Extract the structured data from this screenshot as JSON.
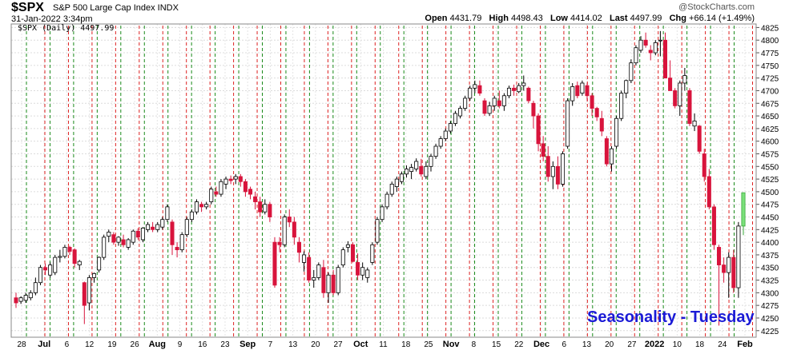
{
  "header": {
    "symbol": "$SPX",
    "description": "S&P 500 Large Cap Index INDX",
    "credit": "@StockCharts.com",
    "timestamp": "31-Jan-2022 3:34pm",
    "open_label": "Open",
    "open_value": "4431.79",
    "high_label": "High",
    "high_value": "4498.43",
    "low_label": "Low",
    "low_value": "4414.02",
    "last_label": "Last",
    "last_value": "4497.99",
    "chg_label": "Chg",
    "chg_value": "+66.14 (+1.49%)",
    "legend": "$SPX (Daily) 4497.99",
    "overlay_text": "Seasonality - Tuesday"
  },
  "chart_data": {
    "type": "candlestick",
    "ylim": [
      4212,
      4832
    ],
    "y_ticks": [
      4225,
      4250,
      4275,
      4300,
      4325,
      4350,
      4375,
      4400,
      4425,
      4450,
      4475,
      4500,
      4525,
      4550,
      4575,
      4600,
      4625,
      4650,
      4675,
      4700,
      4725,
      4750,
      4775,
      4800,
      4825
    ],
    "x_tick_labels": [
      "28",
      "Jul",
      "6",
      "12",
      "19",
      "26",
      "Aug",
      "9",
      "16",
      "23",
      "Sep",
      "7",
      "13",
      "20",
      "27",
      "Oct",
      "11",
      "18",
      "25",
      "Nov",
      "8",
      "15",
      "22",
      "Dec",
      "6",
      "13",
      "20",
      "27",
      "2022",
      "10",
      "18",
      "24",
      "Feb"
    ],
    "x_tick_bold": [
      "Jul",
      "Aug",
      "Sep",
      "Oct",
      "Nov",
      "Dec",
      "2022",
      "Feb"
    ],
    "up_color": "#000000",
    "down_color": "#d8143c",
    "last_up_color": "#7be07b",
    "grid": true,
    "vertical_markers": {
      "green": "Tuesday",
      "red": "Wednesday",
      "green_color": "#1a8a1a",
      "red_color": "#dd2222"
    },
    "ohlc": [
      [
        4290,
        4300,
        4270,
        4280
      ],
      [
        4283,
        4293,
        4278,
        4290
      ],
      [
        4285,
        4300,
        4280,
        4295
      ],
      [
        4290,
        4305,
        4285,
        4300
      ],
      [
        4300,
        4330,
        4295,
        4320
      ],
      [
        4320,
        4355,
        4315,
        4350
      ],
      [
        4350,
        4358,
        4335,
        4345
      ],
      [
        4335,
        4360,
        4330,
        4355
      ],
      [
        4340,
        4375,
        4335,
        4370
      ],
      [
        4370,
        4385,
        4360,
        4372
      ],
      [
        4372,
        4395,
        4368,
        4390
      ],
      [
        4390,
        4393,
        4375,
        4382
      ],
      [
        4385,
        4388,
        4350,
        4358
      ],
      [
        4355,
        4365,
        4345,
        4362
      ],
      [
        4320,
        4322,
        4238,
        4275
      ],
      [
        4280,
        4335,
        4265,
        4330
      ],
      [
        4330,
        4340,
        4320,
        4338
      ],
      [
        4345,
        4372,
        4340,
        4370
      ],
      [
        4370,
        4415,
        4365,
        4410
      ],
      [
        4412,
        4425,
        4400,
        4420
      ],
      [
        4415,
        4420,
        4395,
        4400
      ],
      [
        4400,
        4412,
        4393,
        4410
      ],
      [
        4405,
        4415,
        4390,
        4395
      ],
      [
        4390,
        4408,
        4385,
        4405
      ],
      [
        4400,
        4425,
        4395,
        4422
      ],
      [
        4422,
        4428,
        4405,
        4410
      ],
      [
        4405,
        4430,
        4400,
        4428
      ],
      [
        4425,
        4440,
        4420,
        4435
      ],
      [
        4430,
        4440,
        4420,
        4425
      ],
      [
        4425,
        4440,
        4420,
        4435
      ],
      [
        4430,
        4450,
        4425,
        4445
      ],
      [
        4445,
        4475,
        4440,
        4470
      ],
      [
        4440,
        4445,
        4375,
        4395
      ],
      [
        4390,
        4400,
        4370,
        4385
      ],
      [
        4385,
        4420,
        4380,
        4415
      ],
      [
        4415,
        4450,
        4410,
        4445
      ],
      [
        4445,
        4465,
        4440,
        4460
      ],
      [
        4460,
        4485,
        4455,
        4480
      ],
      [
        4475,
        4480,
        4460,
        4470
      ],
      [
        4470,
        4480,
        4465,
        4475
      ],
      [
        4480,
        4510,
        4475,
        4505
      ],
      [
        4500,
        4510,
        4490,
        4495
      ],
      [
        4495,
        4525,
        4490,
        4520
      ],
      [
        4515,
        4530,
        4505,
        4525
      ],
      [
        4525,
        4532,
        4515,
        4522
      ],
      [
        4525,
        4535,
        4515,
        4530
      ],
      [
        4530,
        4535,
        4510,
        4520
      ],
      [
        4520,
        4525,
        4490,
        4500
      ],
      [
        4505,
        4510,
        4485,
        4495
      ],
      [
        4490,
        4500,
        4465,
        4480
      ],
      [
        4480,
        4490,
        4450,
        4460
      ],
      [
        4460,
        4485,
        4455,
        4475
      ],
      [
        4475,
        4480,
        4440,
        4450
      ],
      [
        4400,
        4410,
        4310,
        4315
      ],
      [
        4400,
        4410,
        4380,
        4395
      ],
      [
        4395,
        4455,
        4390,
        4450
      ],
      [
        4450,
        4465,
        4430,
        4440
      ],
      [
        4440,
        4450,
        4395,
        4410
      ],
      [
        4400,
        4410,
        4360,
        4380
      ],
      [
        4360,
        4382,
        4342,
        4375
      ],
      [
        4370,
        4380,
        4320,
        4325
      ],
      [
        4325,
        4345,
        4310,
        4330
      ],
      [
        4330,
        4360,
        4325,
        4355
      ],
      [
        4350,
        4365,
        4290,
        4300
      ],
      [
        4300,
        4340,
        4280,
        4335
      ],
      [
        4335,
        4345,
        4295,
        4300
      ],
      [
        4300,
        4355,
        4295,
        4350
      ],
      [
        4355,
        4390,
        4350,
        4385
      ],
      [
        4390,
        4402,
        4380,
        4395
      ],
      [
        4395,
        4400,
        4360,
        4362
      ],
      [
        4360,
        4378,
        4325,
        4335
      ],
      [
        4335,
        4360,
        4325,
        4350
      ],
      [
        4330,
        4350,
        4320,
        4345
      ],
      [
        4360,
        4400,
        4355,
        4395
      ],
      [
        4400,
        4450,
        4395,
        4445
      ],
      [
        4445,
        4475,
        4440,
        4470
      ],
      [
        4470,
        4500,
        4465,
        4495
      ],
      [
        4495,
        4520,
        4490,
        4515
      ],
      [
        4510,
        4530,
        4500,
        4525
      ],
      [
        4520,
        4540,
        4515,
        4535
      ],
      [
        4535,
        4552,
        4528,
        4545
      ],
      [
        4540,
        4555,
        4525,
        4548
      ],
      [
        4545,
        4566,
        4540,
        4560
      ],
      [
        4550,
        4565,
        4530,
        4535
      ],
      [
        4530,
        4560,
        4525,
        4550
      ],
      [
        4550,
        4575,
        4540,
        4570
      ],
      [
        4570,
        4595,
        4565,
        4590
      ],
      [
        4590,
        4610,
        4585,
        4605
      ],
      [
        4605,
        4625,
        4600,
        4620
      ],
      [
        4620,
        4640,
        4615,
        4635
      ],
      [
        4635,
        4660,
        4630,
        4655
      ],
      [
        4650,
        4670,
        4645,
        4665
      ],
      [
        4665,
        4690,
        4660,
        4685
      ],
      [
        4685,
        4710,
        4680,
        4705
      ],
      [
        4705,
        4720,
        4695,
        4712
      ],
      [
        4710,
        4720,
        4690,
        4695
      ],
      [
        4680,
        4685,
        4650,
        4655
      ],
      [
        4655,
        4678,
        4650,
        4670
      ],
      [
        4670,
        4690,
        4660,
        4685
      ],
      [
        4680,
        4700,
        4665,
        4670
      ],
      [
        4670,
        4695,
        4660,
        4690
      ],
      [
        4690,
        4710,
        4685,
        4705
      ],
      [
        4705,
        4712,
        4690,
        4700
      ],
      [
        4698,
        4715,
        4695,
        4710
      ],
      [
        4710,
        4730,
        4700,
        4715
      ],
      [
        4705,
        4708,
        4675,
        4680
      ],
      [
        4675,
        4680,
        4625,
        4650
      ],
      [
        4650,
        4655,
        4580,
        4595
      ],
      [
        4595,
        4610,
        4560,
        4570
      ],
      [
        4570,
        4590,
        4520,
        4530
      ],
      [
        4530,
        4560,
        4505,
        4550
      ],
      [
        4550,
        4570,
        4505,
        4515
      ],
      [
        4515,
        4580,
        4510,
        4575
      ],
      [
        4590,
        4685,
        4585,
        4680
      ],
      [
        4680,
        4715,
        4670,
        4708
      ],
      [
        4710,
        4718,
        4685,
        4690
      ],
      [
        4695,
        4720,
        4690,
        4715
      ],
      [
        4710,
        4715,
        4680,
        4690
      ],
      [
        4690,
        4695,
        4650,
        4665
      ],
      [
        4665,
        4668,
        4640,
        4648
      ],
      [
        4645,
        4660,
        4610,
        4620
      ],
      [
        4605,
        4610,
        4550,
        4555
      ],
      [
        4555,
        4590,
        4540,
        4585
      ],
      [
        4590,
        4650,
        4585,
        4645
      ],
      [
        4645,
        4700,
        4640,
        4695
      ],
      [
        4695,
        4722,
        4685,
        4720
      ],
      [
        4720,
        4762,
        4715,
        4755
      ],
      [
        4755,
        4790,
        4750,
        4785
      ],
      [
        4780,
        4808,
        4775,
        4800
      ],
      [
        4800,
        4815,
        4785,
        4790
      ],
      [
        4780,
        4790,
        4760,
        4775
      ],
      [
        4775,
        4800,
        4770,
        4795
      ],
      [
        4800,
        4818,
        4768,
        4800
      ],
      [
        4800,
        4815,
        4725,
        4725
      ],
      [
        4725,
        4760,
        4700,
        4700
      ],
      [
        4700,
        4705,
        4665,
        4670
      ],
      [
        4670,
        4720,
        4650,
        4715
      ],
      [
        4715,
        4745,
        4700,
        4730
      ],
      [
        4700,
        4705,
        4630,
        4635
      ],
      [
        4630,
        4655,
        4620,
        4640
      ],
      [
        4630,
        4632,
        4575,
        4580
      ],
      [
        4575,
        4585,
        4520,
        4530
      ],
      [
        4530,
        4545,
        4465,
        4470
      ],
      [
        4470,
        4475,
        4385,
        4395
      ],
      [
        4390,
        4395,
        4235,
        4355
      ],
      [
        4355,
        4370,
        4320,
        4340
      ],
      [
        4340,
        4380,
        4290,
        4370
      ],
      [
        4370,
        4385,
        4300,
        4310
      ],
      [
        4310,
        4440,
        4290,
        4432
      ],
      [
        4432,
        4498,
        4414,
        4498
      ]
    ]
  }
}
